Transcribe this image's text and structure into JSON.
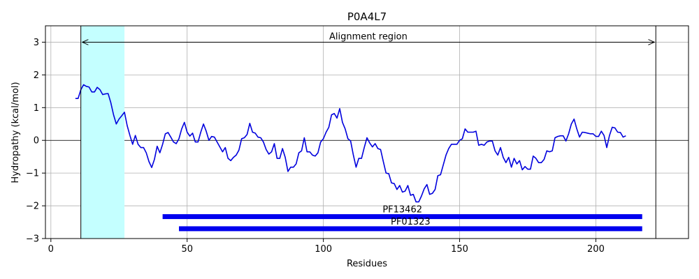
{
  "chart_data": {
    "type": "line",
    "title": "P0A4L7",
    "xlabel": "Residues",
    "ylabel": "Hydropathy (kcal/mol)",
    "xlim": [
      -2,
      234
    ],
    "ylim": [
      -3,
      3.5
    ],
    "xticks": [
      0,
      50,
      100,
      150,
      200
    ],
    "yticks": [
      -3,
      -2,
      -1,
      0,
      1,
      2,
      3
    ],
    "grid": true,
    "series": [
      {
        "color": "#0000dd",
        "x": [
          9,
          10,
          11,
          12,
          13,
          14,
          15,
          16,
          17,
          18,
          19,
          20,
          21,
          22,
          23,
          24,
          25,
          26,
          27,
          28,
          29,
          30,
          31,
          32,
          33,
          34,
          35,
          36,
          37,
          38,
          39,
          40,
          41,
          42,
          43,
          44,
          45,
          46,
          47,
          48,
          49,
          50,
          51,
          52,
          53,
          54,
          55,
          56,
          57,
          58,
          59,
          60,
          61,
          62,
          63,
          64,
          65,
          66,
          67,
          68,
          69,
          70,
          71,
          72,
          73,
          74,
          75,
          76,
          77,
          78,
          79,
          80,
          81,
          82,
          83,
          84,
          85,
          86,
          87,
          88,
          89,
          90,
          91,
          92,
          93,
          94,
          95,
          96,
          97,
          98,
          99,
          100,
          101,
          102,
          103,
          104,
          105,
          106,
          107,
          108,
          109,
          110,
          111,
          112,
          113,
          114,
          115,
          116,
          117,
          118,
          119,
          120,
          121,
          122,
          123,
          124,
          125,
          126,
          127,
          128,
          129,
          130,
          131,
          132,
          133,
          134,
          135,
          136,
          137,
          138,
          139,
          140,
          141,
          142,
          143,
          144,
          145,
          146,
          147,
          148,
          149,
          150,
          151,
          152,
          153,
          154,
          155,
          156,
          157,
          158,
          159,
          160,
          161,
          162,
          163,
          164,
          165,
          166,
          167,
          168,
          169,
          170,
          171,
          172,
          173,
          174,
          175,
          176,
          177,
          178,
          179,
          180,
          181,
          182,
          183,
          184,
          185,
          186,
          187,
          188,
          189,
          190,
          191,
          192,
          193,
          194,
          195,
          196,
          197,
          198,
          199,
          200,
          201,
          202,
          203,
          204,
          205,
          206,
          207,
          208,
          209,
          210,
          211
        ],
        "y": [
          1.28,
          1.28,
          1.55,
          1.7,
          1.65,
          1.63,
          1.48,
          1.48,
          1.62,
          1.55,
          1.4,
          1.42,
          1.43,
          1.15,
          0.78,
          0.5,
          0.65,
          0.75,
          0.86,
          0.45,
          0.15,
          -0.12,
          0.15,
          -0.12,
          -0.22,
          -0.22,
          -0.38,
          -0.65,
          -0.83,
          -0.58,
          -0.18,
          -0.38,
          -0.12,
          0.2,
          0.24,
          0.1,
          -0.05,
          -0.1,
          0.05,
          0.35,
          0.55,
          0.25,
          0.13,
          0.22,
          -0.05,
          -0.05,
          0.25,
          0.5,
          0.28,
          0.0,
          0.12,
          0.1,
          -0.05,
          -0.2,
          -0.35,
          -0.22,
          -0.55,
          -0.62,
          -0.52,
          -0.45,
          -0.3,
          0.05,
          0.08,
          0.18,
          0.52,
          0.25,
          0.22,
          0.1,
          0.08,
          -0.05,
          -0.28,
          -0.42,
          -0.35,
          -0.1,
          -0.55,
          -0.55,
          -0.25,
          -0.52,
          -0.95,
          -0.82,
          -0.82,
          -0.72,
          -0.38,
          -0.32,
          0.08,
          -0.35,
          -0.35,
          -0.45,
          -0.48,
          -0.38,
          -0.05,
          0.05,
          0.25,
          0.4,
          0.78,
          0.82,
          0.68,
          0.97,
          0.55,
          0.35,
          0.05,
          -0.02,
          -0.45,
          -0.82,
          -0.55,
          -0.55,
          -0.22,
          0.08,
          -0.08,
          -0.2,
          -0.1,
          -0.25,
          -0.28,
          -0.65,
          -1.0,
          -1.02,
          -1.3,
          -1.32,
          -1.5,
          -1.38,
          -1.58,
          -1.55,
          -1.38,
          -1.68,
          -1.65,
          -1.88,
          -1.88,
          -1.7,
          -1.48,
          -1.35,
          -1.65,
          -1.62,
          -1.5,
          -1.08,
          -1.05,
          -0.75,
          -0.45,
          -0.25,
          -0.12,
          -0.12,
          -0.12,
          0.0,
          0.05,
          0.35,
          0.25,
          0.25,
          0.25,
          0.28,
          -0.15,
          -0.12,
          -0.15,
          -0.05,
          -0.02,
          -0.02,
          -0.32,
          -0.45,
          -0.22,
          -0.52,
          -0.68,
          -0.52,
          -0.82,
          -0.55,
          -0.72,
          -0.62,
          -0.9,
          -0.8,
          -0.88,
          -0.88,
          -0.48,
          -0.55,
          -0.68,
          -0.68,
          -0.58,
          -0.32,
          -0.35,
          -0.32,
          0.08,
          0.12,
          0.14,
          0.14,
          -0.02,
          0.2,
          0.5,
          0.65,
          0.35,
          0.1,
          0.25,
          0.24,
          0.22,
          0.2,
          0.2,
          0.12,
          0.12,
          0.28,
          0.15,
          -0.22,
          0.15,
          0.4,
          0.38,
          0.25,
          0.24,
          0.1,
          0.14
        ]
      }
    ],
    "vlines": [
      11,
      222
    ],
    "shaded_region": {
      "x0": 11,
      "x1": 27,
      "color": "#c4ffff"
    },
    "arrow": {
      "x0": 11,
      "x1": 222,
      "y": 3.0,
      "label": "Alignment region"
    },
    "domains": [
      {
        "name": "PF13462",
        "start": 41,
        "end": 217,
        "y": -2.33,
        "color": "#0000ee"
      },
      {
        "name": "PF01323",
        "start": 47,
        "end": 217,
        "y": -2.7,
        "color": "#0000ee"
      }
    ]
  }
}
